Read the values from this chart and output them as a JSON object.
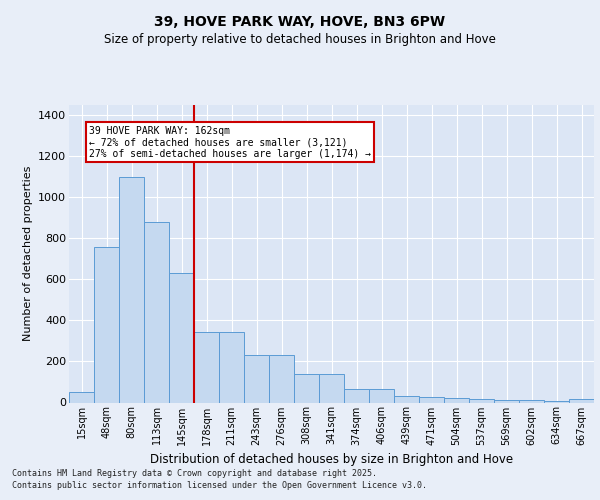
{
  "title": "39, HOVE PARK WAY, HOVE, BN3 6PW",
  "subtitle": "Size of property relative to detached houses in Brighton and Hove",
  "xlabel": "Distribution of detached houses by size in Brighton and Hove",
  "ylabel": "Number of detached properties",
  "categories": [
    "15sqm",
    "48sqm",
    "80sqm",
    "113sqm",
    "145sqm",
    "178sqm",
    "211sqm",
    "243sqm",
    "276sqm",
    "308sqm",
    "341sqm",
    "374sqm",
    "406sqm",
    "439sqm",
    "471sqm",
    "504sqm",
    "537sqm",
    "569sqm",
    "602sqm",
    "634sqm",
    "667sqm"
  ],
  "values": [
    50,
    760,
    1100,
    880,
    630,
    345,
    345,
    230,
    230,
    140,
    140,
    65,
    65,
    30,
    25,
    20,
    15,
    12,
    12,
    5,
    15
  ],
  "bar_color": "#c5d9f0",
  "bar_edge_color": "#5b9bd5",
  "background_color": "#dce6f5",
  "grid_color": "#ffffff",
  "plot_bg": "#dce6f5",
  "fig_bg": "#e8eef8",
  "vline_x": 4.5,
  "vline_color": "#cc0000",
  "annotation_text": "39 HOVE PARK WAY: 162sqm\n← 72% of detached houses are smaller (3,121)\n27% of semi-detached houses are larger (1,174) →",
  "annotation_box_color": "#cc0000",
  "footer_line1": "Contains HM Land Registry data © Crown copyright and database right 2025.",
  "footer_line2": "Contains public sector information licensed under the Open Government Licence v3.0.",
  "ylim": [
    0,
    1450
  ],
  "yticks": [
    0,
    200,
    400,
    600,
    800,
    1000,
    1200,
    1400
  ]
}
